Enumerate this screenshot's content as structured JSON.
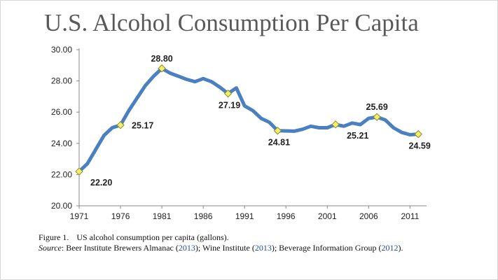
{
  "title": "U.S. Alcohol Consumption Per Capita",
  "caption": {
    "figure_num": "Figure 1.",
    "text": "US alcohol consumption per capita (gallons).",
    "source_label": "Source",
    "source_sep": ": ",
    "src1_name": "Beer Institute Brewers Almanac (",
    "src1_year": "2013",
    "src1_end": "); ",
    "src2_name": "Wine Institute (",
    "src2_year": "2013",
    "src2_end": "); ",
    "src3_name": "Beverage Information Group (",
    "src3_year": "2012",
    "src3_end": ")."
  },
  "colors": {
    "line": "#4a7fc1",
    "marker": "#f5ef62",
    "marker_stroke": "#8a8a3a",
    "axis": "#888888"
  },
  "chart_data": {
    "type": "line",
    "title": "U.S. Alcohol Consumption Per Capita",
    "xlabel": "",
    "ylabel": "",
    "xlim": [
      1971,
      2013
    ],
    "ylim": [
      20,
      30
    ],
    "x_ticks": [
      1971,
      1976,
      1981,
      1986,
      1991,
      1996,
      2001,
      2006,
      2011
    ],
    "y_ticks": [
      "20.00",
      "22.00",
      "24.00",
      "26.00",
      "28.00",
      "30.00"
    ],
    "series": [
      {
        "name": "US alcohol consumption per capita (gallons)",
        "points": [
          [
            1971,
            22.2
          ],
          [
            1972,
            22.7
          ],
          [
            1973,
            23.6
          ],
          [
            1974,
            24.5
          ],
          [
            1975,
            25.0
          ],
          [
            1976,
            25.17
          ],
          [
            1977,
            26.1
          ],
          [
            1978,
            26.9
          ],
          [
            1979,
            27.7
          ],
          [
            1980,
            28.3
          ],
          [
            1981,
            28.8
          ],
          [
            1982,
            28.5
          ],
          [
            1983,
            28.3
          ],
          [
            1984,
            28.1
          ],
          [
            1985,
            27.95
          ],
          [
            1986,
            28.15
          ],
          [
            1987,
            27.95
          ],
          [
            1988,
            27.6
          ],
          [
            1989,
            27.19
          ],
          [
            1990,
            27.55
          ],
          [
            1991,
            26.4
          ],
          [
            1992,
            26.1
          ],
          [
            1993,
            25.6
          ],
          [
            1994,
            25.35
          ],
          [
            1995,
            24.81
          ],
          [
            1996,
            24.8
          ],
          [
            1997,
            24.78
          ],
          [
            1998,
            24.9
          ],
          [
            1999,
            25.1
          ],
          [
            2000,
            25.0
          ],
          [
            2001,
            25.0
          ],
          [
            2002,
            25.21
          ],
          [
            2003,
            25.1
          ],
          [
            2004,
            25.3
          ],
          [
            2005,
            25.2
          ],
          [
            2006,
            25.6
          ],
          [
            2007,
            25.69
          ],
          [
            2008,
            25.5
          ],
          [
            2009,
            25.0
          ],
          [
            2010,
            24.7
          ],
          [
            2011,
            24.55
          ],
          [
            2012,
            24.59
          ]
        ]
      }
    ],
    "annotations": [
      {
        "x": 1971,
        "y": 22.2,
        "label": "22.20",
        "pos": "below-right"
      },
      {
        "x": 1976,
        "y": 25.17,
        "label": "25.17",
        "pos": "right"
      },
      {
        "x": 1981,
        "y": 28.8,
        "label": "28.80",
        "pos": "above"
      },
      {
        "x": 1989,
        "y": 27.19,
        "label": "27.19",
        "pos": "below"
      },
      {
        "x": 1995,
        "y": 24.81,
        "label": "24.81",
        "pos": "below"
      },
      {
        "x": 2002,
        "y": 25.21,
        "label": "25.21",
        "pos": "below-right"
      },
      {
        "x": 2007,
        "y": 25.69,
        "label": "25.69",
        "pos": "above"
      },
      {
        "x": 2012,
        "y": 24.59,
        "label": "24.59",
        "pos": "below"
      }
    ]
  }
}
